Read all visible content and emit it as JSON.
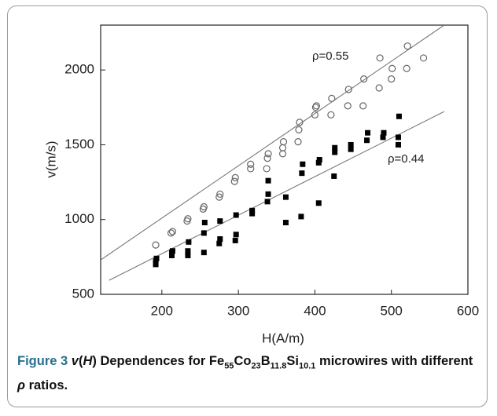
{
  "chart_data": {
    "type": "scatter",
    "xlabel": "H(A/m)",
    "ylabel": "v(m/s)",
    "xlim": [
      120,
      600
    ],
    "xticks": [
      200,
      300,
      400,
      500,
      600
    ],
    "ylim": [
      500,
      2300
    ],
    "yticks": [
      500,
      1000,
      1500,
      2000
    ],
    "series": [
      {
        "name": "ρ=0.55",
        "marker": "circle",
        "color": "#666666",
        "x": [
          192,
          212,
          214,
          233,
          234,
          254,
          255,
          275,
          276,
          295,
          296,
          316,
          316,
          337,
          338,
          339,
          358,
          358,
          359,
          378,
          379,
          380,
          400,
          401,
          402,
          421,
          422,
          443,
          444,
          463,
          464,
          484,
          485,
          500,
          501,
          520,
          521,
          542
        ],
        "values": [
          830,
          910,
          920,
          990,
          1005,
          1070,
          1085,
          1150,
          1170,
          1255,
          1280,
          1340,
          1370,
          1340,
          1410,
          1440,
          1440,
          1480,
          1520,
          1520,
          1600,
          1650,
          1700,
          1750,
          1760,
          1700,
          1810,
          1760,
          1870,
          1760,
          1940,
          1880,
          2080,
          1940,
          2010,
          2010,
          2160,
          2080
        ],
        "fit": {
          "x": [
            120,
            569
          ],
          "values": [
            730,
            2300
          ]
        }
      },
      {
        "name": "ρ=0.44",
        "marker": "square",
        "color": "#000000",
        "x": [
          192,
          192,
          193,
          213,
          213,
          214,
          234,
          234,
          235,
          255,
          255,
          256,
          275,
          276,
          276,
          296,
          297,
          297,
          318,
          318,
          338,
          339,
          339,
          362,
          362,
          382,
          383,
          384,
          405,
          405,
          406,
          425,
          426,
          426,
          447,
          447,
          468,
          469,
          489,
          490,
          509,
          509,
          510
        ],
        "values": [
          700,
          720,
          740,
          760,
          780,
          790,
          760,
          790,
          850,
          780,
          910,
          980,
          840,
          870,
          990,
          860,
          900,
          1030,
          1040,
          1060,
          1120,
          1170,
          1260,
          980,
          1150,
          1020,
          1310,
          1370,
          1110,
          1380,
          1400,
          1290,
          1450,
          1480,
          1470,
          1500,
          1530,
          1580,
          1550,
          1580,
          1500,
          1550,
          1690
        ],
        "fit": {
          "x": [
            131,
            569
          ],
          "values": [
            594,
            1722
          ]
        }
      }
    ]
  },
  "caption": {
    "label": "Figure 3",
    "parts": [
      "v",
      "(",
      "H",
      ") Dependences for Fe",
      "55",
      "Co",
      "23",
      "B",
      "11.8",
      "Si",
      "10.1",
      " microwires with different ",
      "ρ",
      " ratios."
    ]
  }
}
